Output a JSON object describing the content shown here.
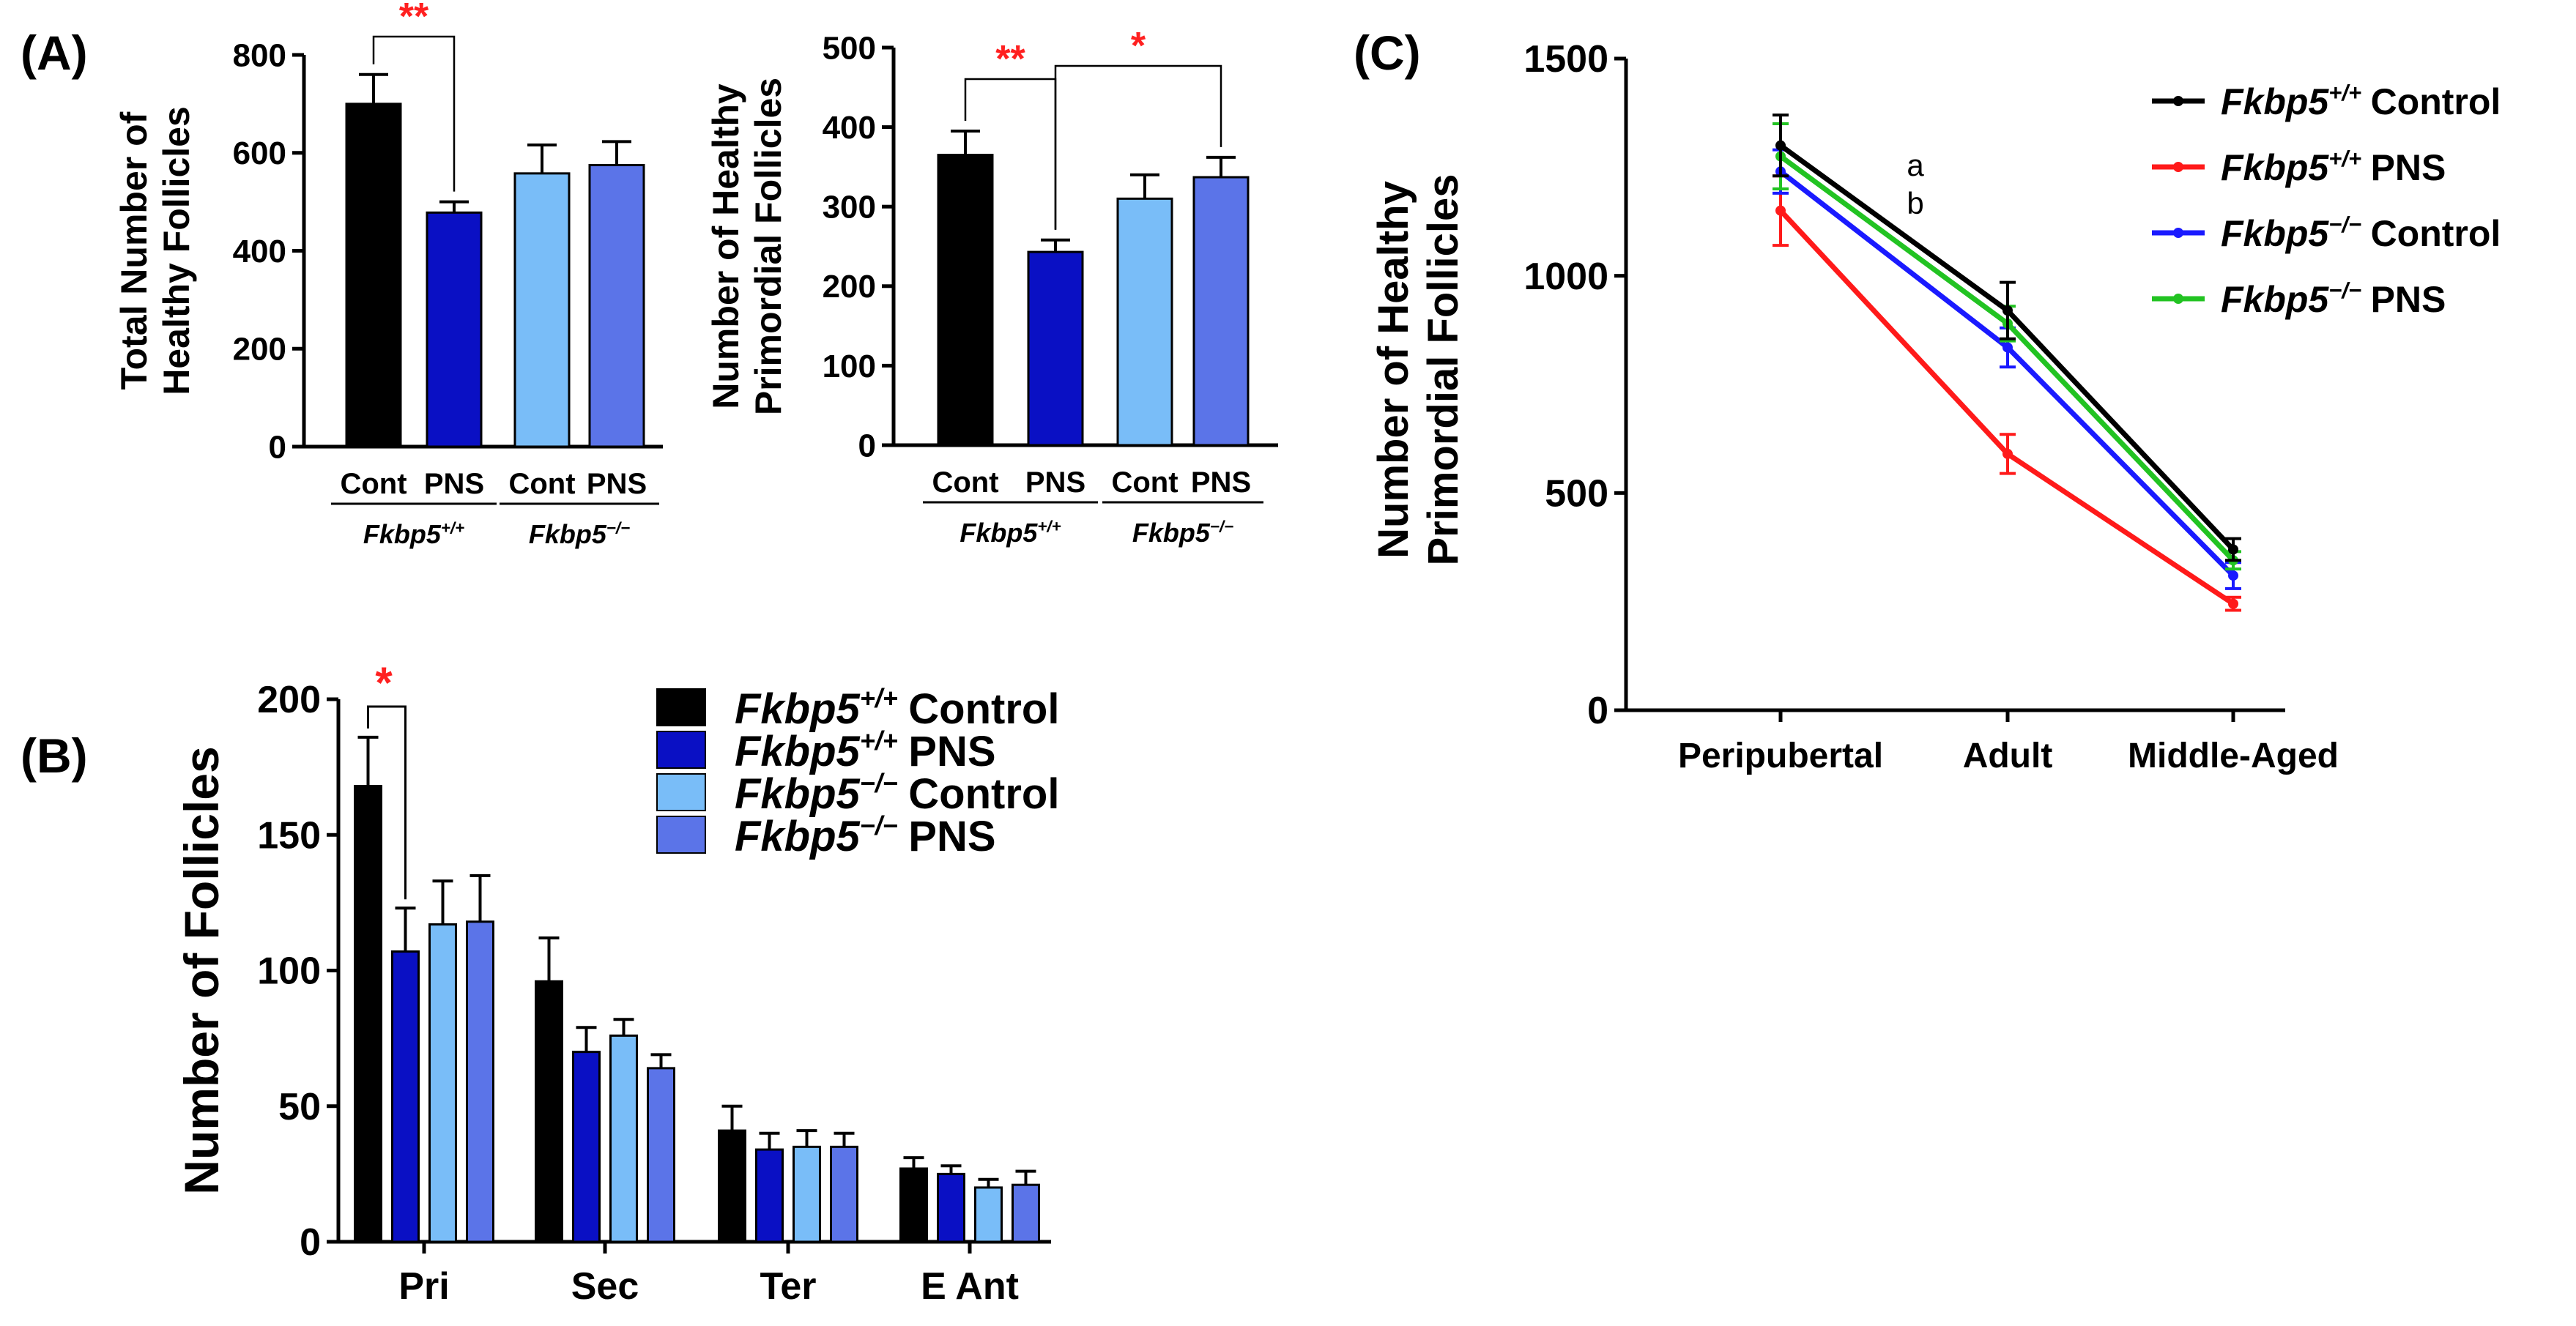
{
  "colors": {
    "wt_control": "#000000",
    "wt_pns": "#0a10c4",
    "ko_control": "#79bdf8",
    "ko_pns": "#5b74e8",
    "line_wt_control": "#000000",
    "line_wt_pns": "#ff1a1a",
    "line_ko_control": "#1a1aff",
    "line_ko_pns": "#22c322",
    "significance": "#ff2020",
    "axis": "#000000"
  },
  "gene": "Fkbp5",
  "panel_labels": {
    "a": "(A)",
    "b": "(B)",
    "c": "(C)"
  },
  "chart_data": [
    {
      "id": "A1",
      "type": "bar",
      "ylabel_lines": [
        "Total Number of",
        "Healthy Follicles"
      ],
      "ylim": [
        0,
        800
      ],
      "yticks": [
        0,
        200,
        400,
        600,
        800
      ],
      "ytick_labels": [
        "0",
        "200",
        "400",
        "600",
        "800"
      ],
      "categories": [
        "Cont",
        "PNS",
        "Cont",
        "PNS"
      ],
      "values": [
        700,
        478,
        558,
        575
      ],
      "errors": [
        60,
        22,
        58,
        48
      ],
      "groups": [
        {
          "gene": "Fkbp5",
          "sup": "+/+"
        },
        {
          "gene": "Fkbp5",
          "sup": "−/−"
        }
      ],
      "significance": [
        {
          "from": 0,
          "to": 1,
          "label": "**"
        }
      ]
    },
    {
      "id": "A2",
      "type": "bar",
      "ylabel_lines": [
        "Number of Healthy",
        "Primordial Follicles"
      ],
      "ylim": [
        0,
        500
      ],
      "yticks": [
        0,
        100,
        200,
        300,
        400,
        500
      ],
      "ytick_labels": [
        "0",
        "100",
        "200",
        "300",
        "400",
        "500"
      ],
      "categories": [
        "Cont",
        "PNS",
        "Cont",
        "PNS"
      ],
      "values": [
        365,
        243,
        310,
        337
      ],
      "errors": [
        30,
        15,
        30,
        25
      ],
      "groups": [
        {
          "gene": "Fkbp5",
          "sup": "+/+"
        },
        {
          "gene": "Fkbp5",
          "sup": "−/−"
        }
      ],
      "significance": [
        {
          "from": 0,
          "to": 1,
          "label": "**"
        },
        {
          "from": 1,
          "to": 3,
          "label": "*"
        }
      ]
    },
    {
      "id": "B",
      "type": "bar",
      "ylabel": "Number of Follicles",
      "ylim": [
        0,
        200
      ],
      "yticks": [
        0,
        50,
        100,
        150,
        200
      ],
      "ytick_labels": [
        "0",
        "50",
        "100",
        "150",
        "200"
      ],
      "categories": [
        "Pri",
        "Sec",
        "Ter",
        "E Ant"
      ],
      "series": [
        {
          "values": [
            168,
            96,
            41,
            27
          ],
          "errors": [
            18,
            16,
            9,
            4
          ]
        },
        {
          "values": [
            107,
            70,
            34,
            25
          ],
          "errors": [
            16,
            9,
            6,
            3
          ]
        },
        {
          "values": [
            117,
            76,
            35,
            20
          ],
          "errors": [
            16,
            6,
            6,
            3
          ]
        },
        {
          "values": [
            118,
            64,
            35,
            21
          ],
          "errors": [
            17,
            5,
            5,
            5
          ]
        }
      ],
      "legend": [
        {
          "gene": "Fkbp5",
          "sup": "+/+",
          "text": "Control"
        },
        {
          "gene": "Fkbp5",
          "sup": "+/+",
          "text": "PNS"
        },
        {
          "gene": "Fkbp5",
          "sup": "−/−",
          "text": "Control"
        },
        {
          "gene": "Fkbp5",
          "sup": "−/−",
          "text": "PNS"
        }
      ],
      "legend_position": "top-right",
      "significance": [
        {
          "category": 0,
          "from": 0,
          "to": 1,
          "label": "*"
        }
      ]
    },
    {
      "id": "C",
      "type": "line",
      "ylabel_lines": [
        "Number of Healthy",
        "Primordial Follicles"
      ],
      "ylim": [
        0,
        1500
      ],
      "yticks": [
        0,
        500,
        1000,
        1500
      ],
      "ytick_labels": [
        "0",
        "500",
        "1000",
        "1500"
      ],
      "categories": [
        "Peripubertal",
        "Adult",
        "Middle-Aged"
      ],
      "series": [
        {
          "values": [
            1300,
            920,
            370
          ],
          "errors": [
            70,
            65,
            25
          ]
        },
        {
          "values": [
            1150,
            590,
            245
          ],
          "errors": [
            80,
            45,
            15
          ]
        },
        {
          "values": [
            1240,
            835,
            310
          ],
          "errors": [
            50,
            45,
            30
          ]
        },
        {
          "values": [
            1275,
            890,
            345
          ],
          "errors": [
            75,
            40,
            20
          ]
        }
      ],
      "legend": [
        {
          "gene": "Fkbp5",
          "sup": "+/+",
          "text": "Control"
        },
        {
          "gene": "Fkbp5",
          "sup": "+/+",
          "text": "PNS"
        },
        {
          "gene": "Fkbp5",
          "sup": "−/−",
          "text": "Control"
        },
        {
          "gene": "Fkbp5",
          "sup": "−/−",
          "text": "PNS"
        }
      ],
      "legend_position": "top-right",
      "annotations": [
        "a",
        "b"
      ]
    }
  ]
}
